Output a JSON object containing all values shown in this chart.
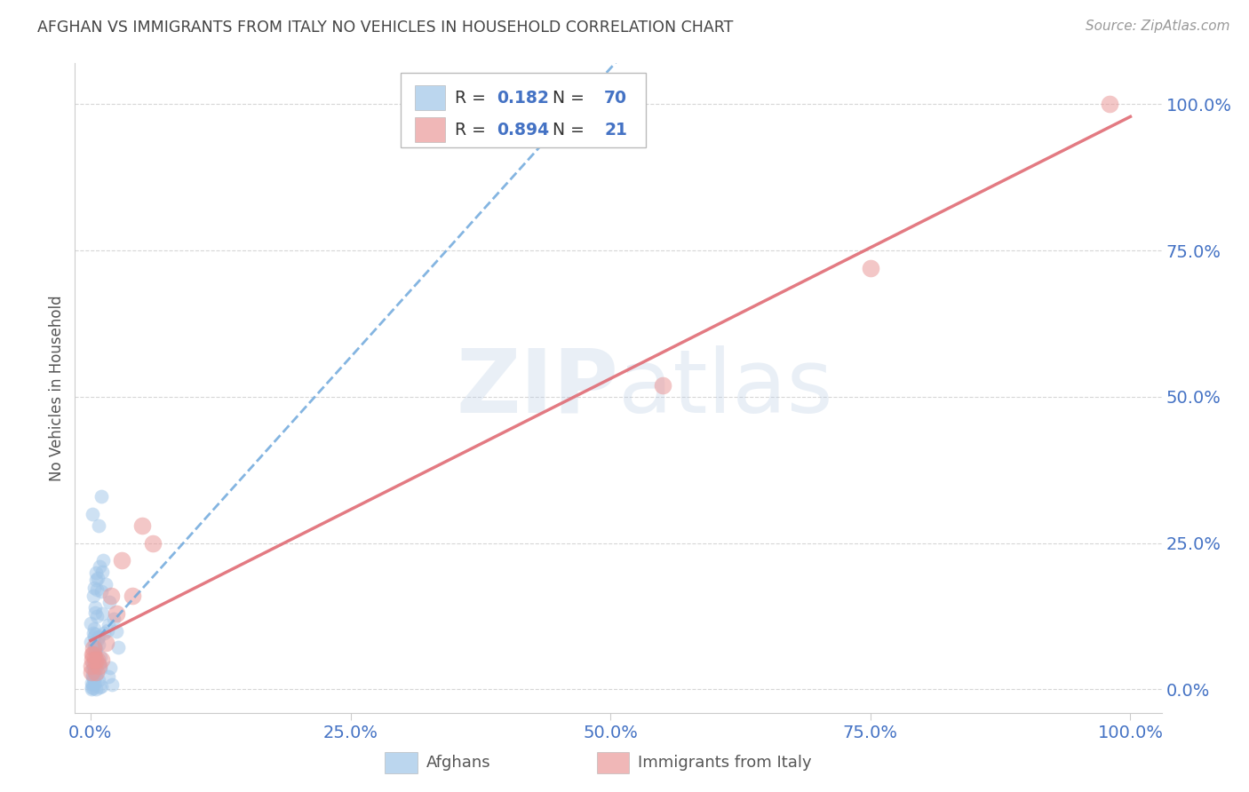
{
  "title": "AFGHAN VS IMMIGRANTS FROM ITALY NO VEHICLES IN HOUSEHOLD CORRELATION CHART",
  "source": "Source: ZipAtlas.com",
  "ylabel": "No Vehicles in Household",
  "legend_afghans": "Afghans",
  "legend_italy": "Immigrants from Italy",
  "r_afghans": 0.182,
  "n_afghans": 70,
  "r_italy": 0.894,
  "n_italy": 21,
  "color_afghans": "#9fc5e8",
  "color_italy": "#ea9999",
  "color_afghans_line": "#6fa8dc",
  "color_italy_line": "#e06c75",
  "watermark_zip": "ZIP",
  "watermark_atlas": "atlas",
  "background_color": "#ffffff",
  "grid_color": "#cccccc",
  "tick_color": "#4472c4",
  "axis_color": "#cccccc",
  "note_color": "#999999",
  "title_color": "#444444",
  "label_color": "#555555"
}
